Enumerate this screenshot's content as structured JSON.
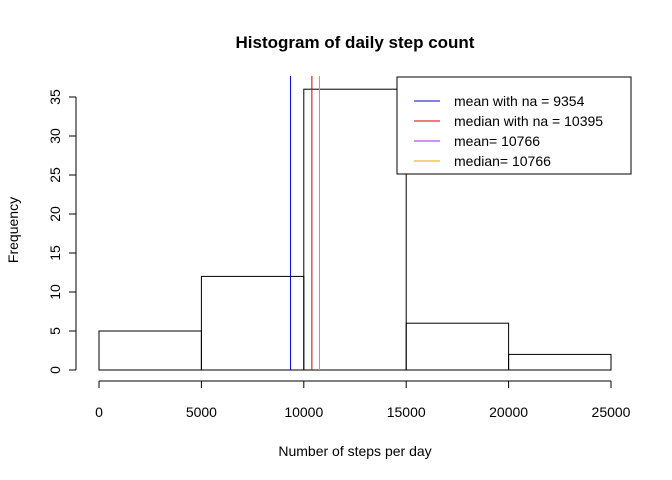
{
  "chart_data": {
    "type": "bar",
    "subtype": "histogram",
    "title": "Histogram of daily step count",
    "xlabel": "Number of steps per day",
    "ylabel": "Frequency",
    "bins": [
      {
        "from": 0,
        "to": 5000,
        "count": 5
      },
      {
        "from": 5000,
        "to": 10000,
        "count": 12
      },
      {
        "from": 10000,
        "to": 15000,
        "count": 36
      },
      {
        "from": 15000,
        "to": 20000,
        "count": 6
      },
      {
        "from": 20000,
        "to": 25000,
        "count": 2
      }
    ],
    "xlim": [
      0,
      25000
    ],
    "ylim": [
      0,
      36
    ],
    "x_ticks": [
      0,
      5000,
      10000,
      15000,
      20000,
      25000
    ],
    "x_tick_labels": [
      "0",
      "5000",
      "10000",
      "15000",
      "20000",
      "25000"
    ],
    "y_ticks": [
      0,
      5,
      10,
      15,
      20,
      25,
      30,
      35
    ],
    "y_tick_labels": [
      "0",
      "5",
      "10",
      "15",
      "20",
      "25",
      "30",
      "35"
    ],
    "vlines": [
      {
        "name": "mean with na",
        "value": 9354,
        "color": "#0000cd"
      },
      {
        "name": "median with na",
        "value": 10395,
        "color": "#cd0000"
      },
      {
        "name": "mean",
        "value": 10766,
        "color": "#a020f0"
      },
      {
        "name": "median",
        "value": 10766,
        "color": "#e6a000"
      }
    ],
    "legend": {
      "position": "top-right",
      "entries": [
        {
          "label": "mean with na =  9354",
          "color": "#0000cd"
        },
        {
          "label": "median with na =  10395",
          "color": "#cd0000"
        },
        {
          "label": "mean= 10766",
          "color": "#a020f0"
        },
        {
          "label": "median= 10766",
          "color": "#e6a000"
        }
      ]
    }
  }
}
